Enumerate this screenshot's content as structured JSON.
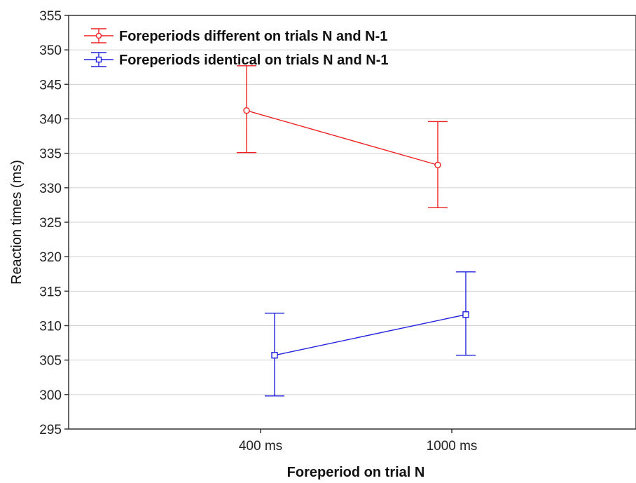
{
  "chart_data": {
    "type": "line",
    "xlabel": "Foreperiod on trial N",
    "ylabel": "Reaction times (ms)",
    "categories": [
      "400 ms",
      "1000 ms"
    ],
    "ylim": [
      295,
      355
    ],
    "yticks": [
      295,
      300,
      305,
      310,
      315,
      320,
      325,
      330,
      335,
      340,
      345,
      350,
      355
    ],
    "grid": "horizontal",
    "legend_position": "top-left",
    "series": [
      {
        "name": "Foreperiods different on trials N and N-1",
        "color": "#ee2222",
        "marker": "circle",
        "values": [
          341.2,
          333.3
        ],
        "error_low": [
          335.1,
          327.1
        ],
        "error_high": [
          347.7,
          339.6
        ]
      },
      {
        "name": "Foreperiods identical on trials N and N-1",
        "color": "#2222dd",
        "marker": "square",
        "values": [
          305.7,
          311.6
        ],
        "error_low": [
          299.8,
          305.7
        ],
        "error_high": [
          311.8,
          317.8
        ]
      }
    ]
  }
}
